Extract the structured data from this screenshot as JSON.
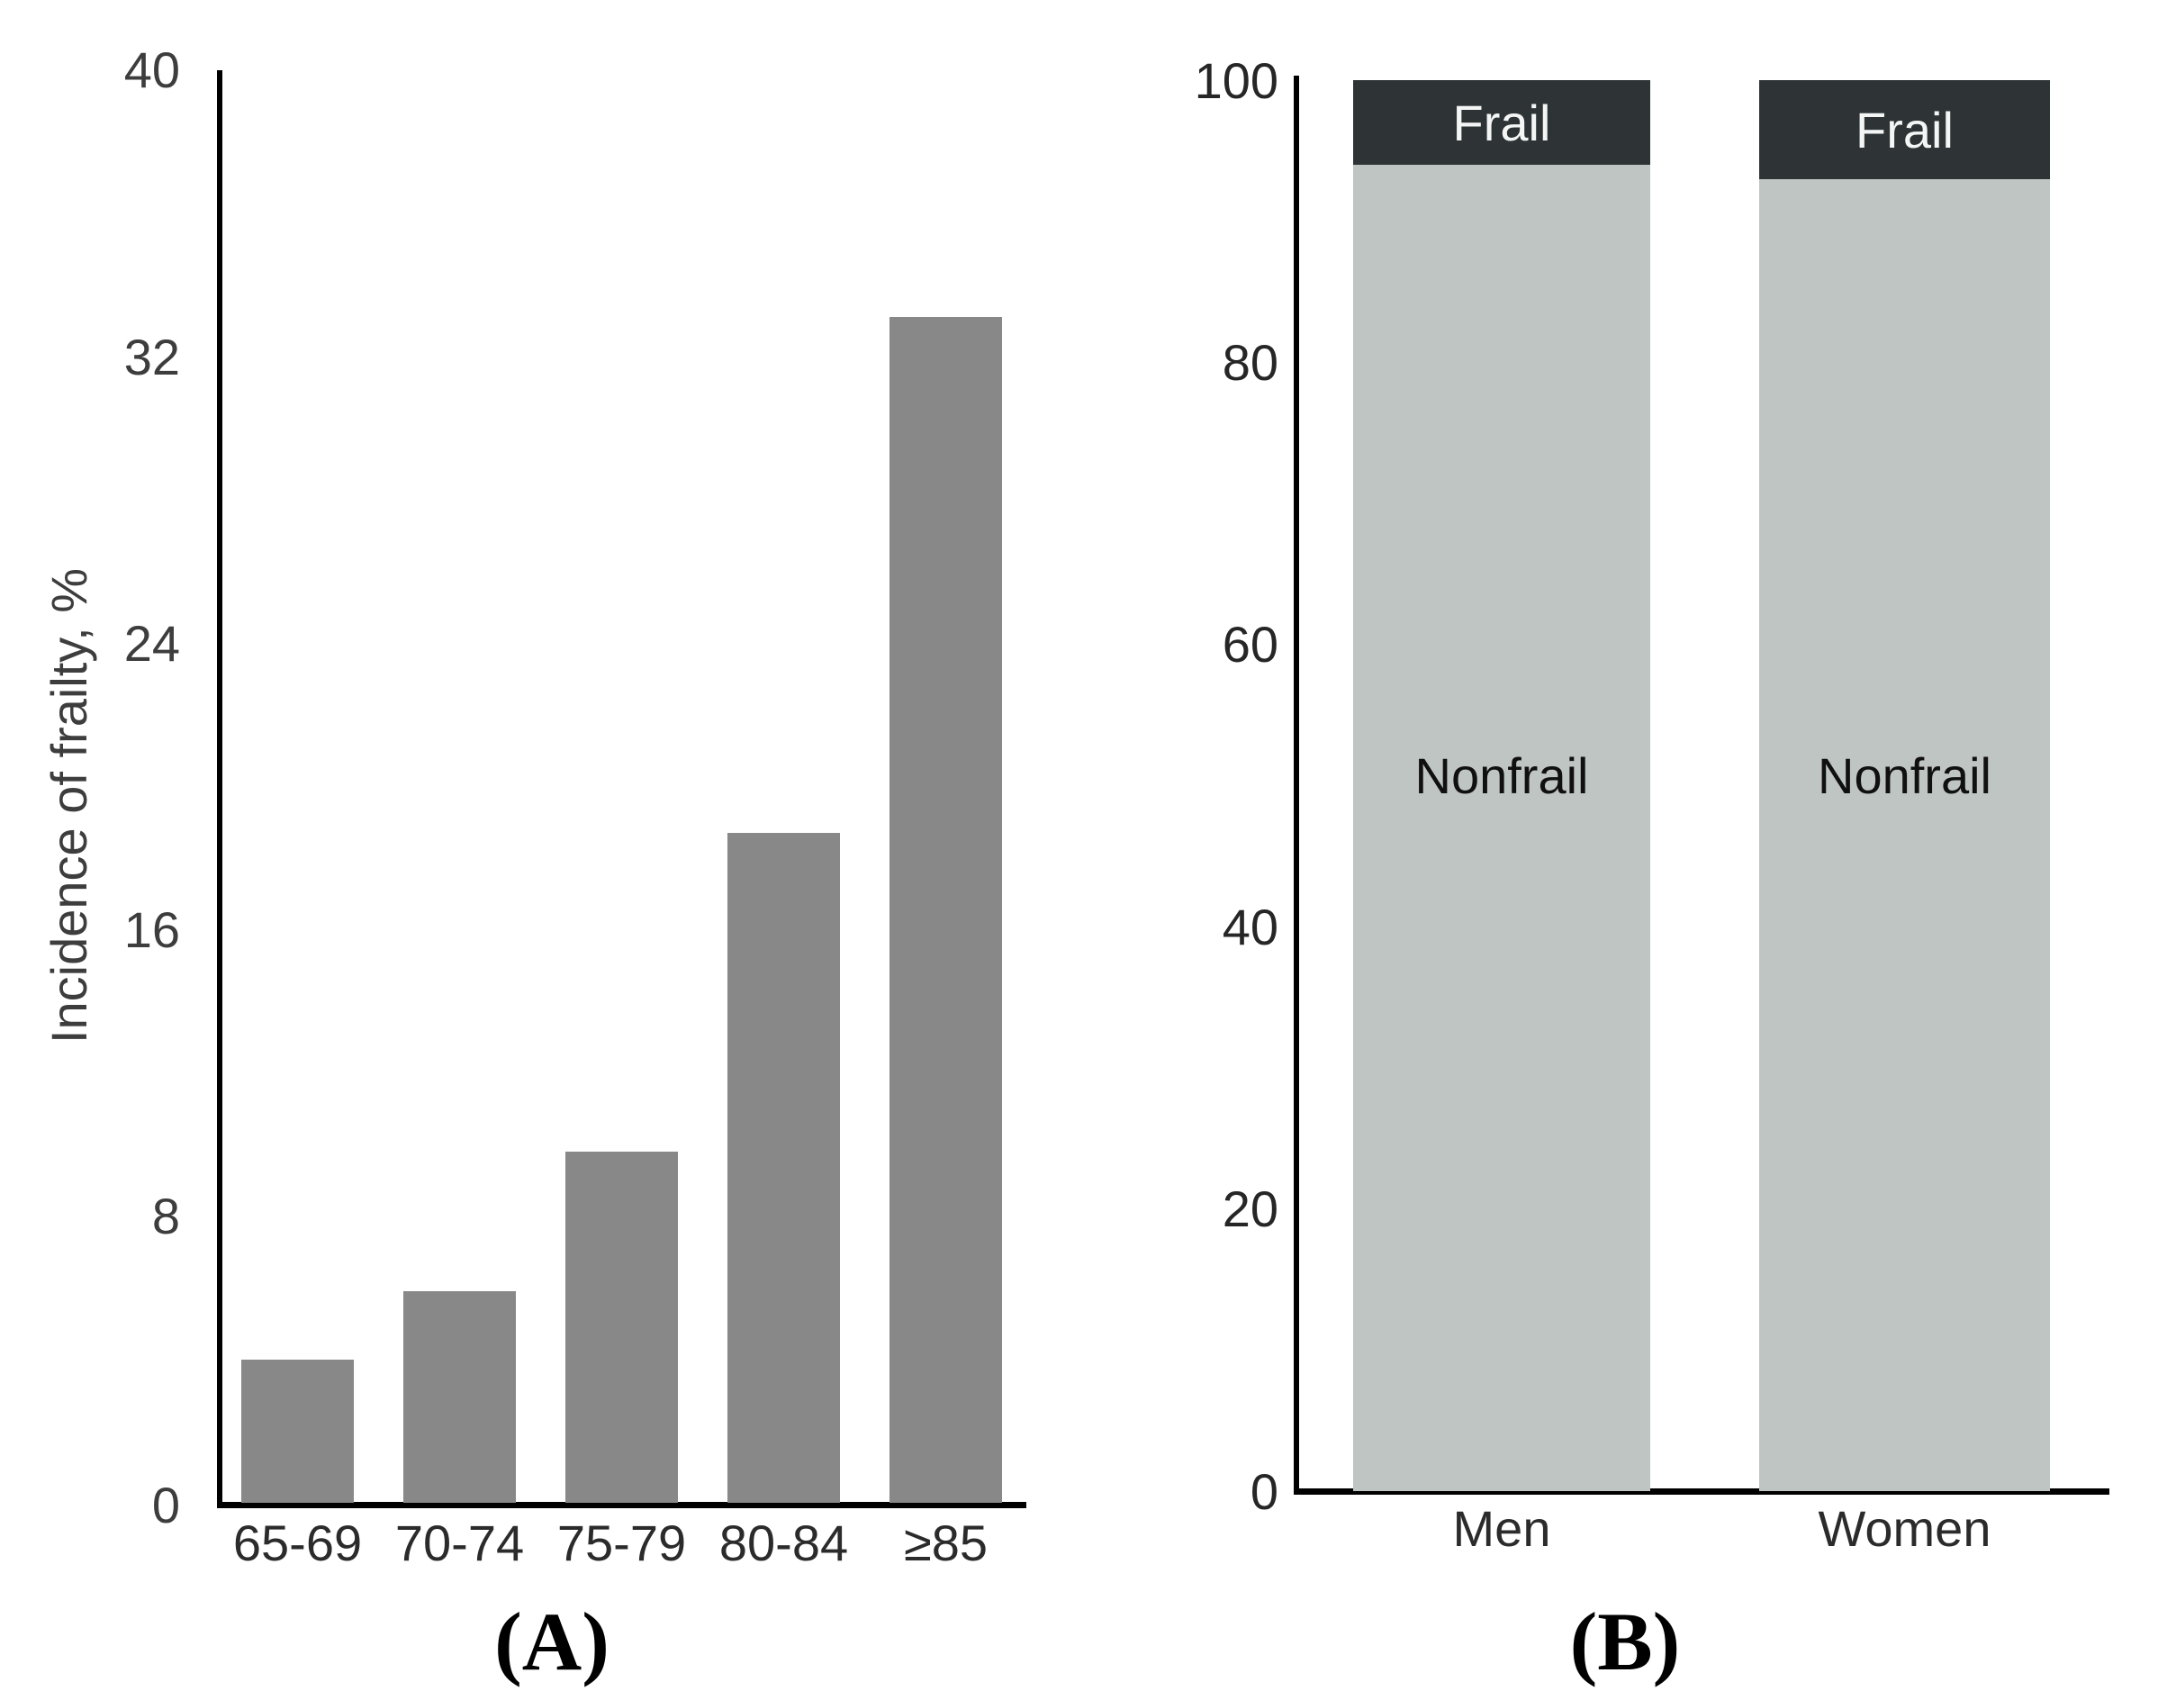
{
  "colors": {
    "panel_a_bar": "#888888",
    "frail_dark": "#2e3436",
    "nonfrail_light": "#bfc5c3",
    "axis": "#000000",
    "background": "#ffffff"
  },
  "chart_data": [
    {
      "type": "bar",
      "panel": "A",
      "caption": "(A)",
      "ylabel": "Incidence of frailty, %",
      "categories": [
        "65-69",
        "70-74",
        "75-79",
        "80-84",
        "≥85"
      ],
      "values": [
        4.0,
        5.9,
        9.8,
        18.7,
        33.1
      ],
      "yticks": [
        0,
        8,
        16,
        24,
        32,
        40
      ],
      "ylim": [
        0,
        40
      ],
      "grid": false,
      "legend": "none"
    },
    {
      "type": "stacked-bar",
      "panel": "B",
      "caption": "(B)",
      "categories": [
        "Men",
        "Women"
      ],
      "series": [
        {
          "name": "Nonfrail",
          "values": [
            94,
            93
          ]
        },
        {
          "name": "Frail",
          "values": [
            6,
            7
          ]
        }
      ],
      "yticks": [
        0,
        20,
        40,
        60,
        80,
        100
      ],
      "ylim": [
        0,
        100
      ],
      "grid": false,
      "legend": "labels-inside-bars"
    }
  ]
}
